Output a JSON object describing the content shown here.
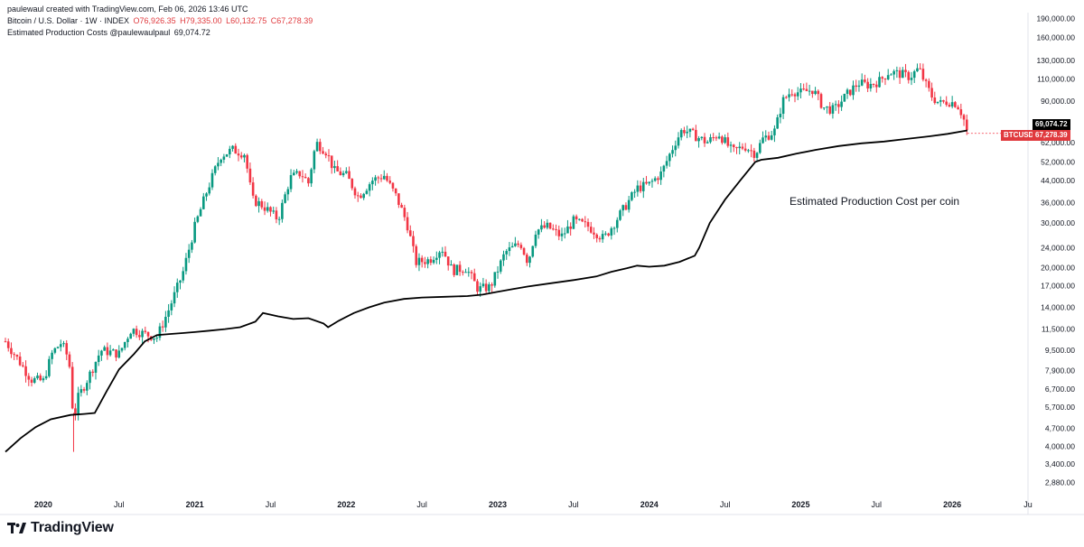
{
  "header": {
    "attribution": "paulewaul created with TradingView.com, Feb 06, 2026 13:46 UTC",
    "symbol": "Bitcoin / U.S. Dollar · 1W · INDEX",
    "open": "O76,926.35",
    "high": "H79,335.00",
    "low": "L60,132.75",
    "close": "C67,278.39",
    "indicator": "Estimated Production Costs @paulewaulpaul",
    "indicator_value": "69,074.72"
  },
  "annotation": "Estimated Production Cost per coin",
  "footer": {
    "brand": "TradingView"
  },
  "price_labels": {
    "production": "69,074.72",
    "btc_symbol": "BTCUSD",
    "btc_price": "67,278.39"
  },
  "colors": {
    "up": "#089981",
    "down": "#f23645",
    "line": "#000000",
    "label_red": "#e03a3e"
  },
  "chart_data": {
    "type": "line",
    "title": "Bitcoin / U.S. Dollar · 1W · INDEX",
    "yscale": "log",
    "ylim": [
      2500,
      200000
    ],
    "xlim": [
      2019.75,
      2026.5
    ],
    "y_ticks": [
      2880,
      3400,
      4000,
      4700,
      5700,
      6700,
      7900,
      9500,
      11500,
      14000,
      17000,
      20000,
      24000,
      30000,
      36000,
      44000,
      52000,
      62000,
      90000,
      110000,
      130000,
      160000,
      190000
    ],
    "y_tick_labels": [
      "2,880.00",
      "3,400.00",
      "4,000.00",
      "4,700.00",
      "5,700.00",
      "6,700.00",
      "7,900.00",
      "9,500.00",
      "11,500.00",
      "14,000.00",
      "17,000.00",
      "20,000.00",
      "24,000.00",
      "30,000.00",
      "36,000.00",
      "44,000.00",
      "52,000.00",
      "62,000.00",
      "90,000.00",
      "110,000.00",
      "130,000.00",
      "160,000.00",
      "190,000.00"
    ],
    "x_ticks": [
      {
        "t": 2020.0,
        "label": "2020",
        "bold": true
      },
      {
        "t": 2020.5,
        "label": "Jul",
        "bold": false
      },
      {
        "t": 2021.0,
        "label": "2021",
        "bold": true
      },
      {
        "t": 2021.5,
        "label": "Jul",
        "bold": false
      },
      {
        "t": 2022.0,
        "label": "2022",
        "bold": true
      },
      {
        "t": 2022.5,
        "label": "Jul",
        "bold": false
      },
      {
        "t": 2023.0,
        "label": "2023",
        "bold": true
      },
      {
        "t": 2023.5,
        "label": "Jul",
        "bold": false
      },
      {
        "t": 2024.0,
        "label": "2024",
        "bold": true
      },
      {
        "t": 2024.5,
        "label": "Jul",
        "bold": false
      },
      {
        "t": 2025.0,
        "label": "2025",
        "bold": true
      },
      {
        "t": 2025.5,
        "label": "Jul",
        "bold": false
      },
      {
        "t": 2026.0,
        "label": "2026",
        "bold": true
      },
      {
        "t": 2026.5,
        "label": "Ju",
        "bold": false
      }
    ],
    "series": [
      {
        "name": "BTCUSD (weekly close)",
        "kind": "candles",
        "points": [
          [
            2019.75,
            10300
          ],
          [
            2019.83,
            8800
          ],
          [
            2019.92,
            7300
          ],
          [
            2020.0,
            7200
          ],
          [
            2020.06,
            9300
          ],
          [
            2020.12,
            10200
          ],
          [
            2020.17,
            8700
          ],
          [
            2020.2,
            5000
          ],
          [
            2020.23,
            6200
          ],
          [
            2020.3,
            7500
          ],
          [
            2020.38,
            9500
          ],
          [
            2020.5,
            9200
          ],
          [
            2020.58,
            11500
          ],
          [
            2020.67,
            11000
          ],
          [
            2020.75,
            10700
          ],
          [
            2020.83,
            13800
          ],
          [
            2020.92,
            19000
          ],
          [
            2021.0,
            29000
          ],
          [
            2021.08,
            40000
          ],
          [
            2021.17,
            55000
          ],
          [
            2021.25,
            58000
          ],
          [
            2021.33,
            56000
          ],
          [
            2021.38,
            37000
          ],
          [
            2021.45,
            35000
          ],
          [
            2021.55,
            31000
          ],
          [
            2021.63,
            45000
          ],
          [
            2021.7,
            47000
          ],
          [
            2021.75,
            43000
          ],
          [
            2021.8,
            62000
          ],
          [
            2021.87,
            57000
          ],
          [
            2021.92,
            48000
          ],
          [
            2022.0,
            46000
          ],
          [
            2022.08,
            38000
          ],
          [
            2022.17,
            44000
          ],
          [
            2022.25,
            46000
          ],
          [
            2022.33,
            38000
          ],
          [
            2022.4,
            30000
          ],
          [
            2022.46,
            21000
          ],
          [
            2022.55,
            21500
          ],
          [
            2022.63,
            24000
          ],
          [
            2022.7,
            19500
          ],
          [
            2022.79,
            20000
          ],
          [
            2022.87,
            16500
          ],
          [
            2022.95,
            16800
          ],
          [
            2023.05,
            23000
          ],
          [
            2023.15,
            25000
          ],
          [
            2023.2,
            21000
          ],
          [
            2023.25,
            28000
          ],
          [
            2023.33,
            29000
          ],
          [
            2023.42,
            26500
          ],
          [
            2023.5,
            30500
          ],
          [
            2023.6,
            29000
          ],
          [
            2023.7,
            26000
          ],
          [
            2023.83,
            34000
          ],
          [
            2023.92,
            41000
          ],
          [
            2024.0,
            42500
          ],
          [
            2024.08,
            47000
          ],
          [
            2024.17,
            62000
          ],
          [
            2024.22,
            70000
          ],
          [
            2024.3,
            66000
          ],
          [
            2024.38,
            62000
          ],
          [
            2024.46,
            67000
          ],
          [
            2024.55,
            57000
          ],
          [
            2024.63,
            60000
          ],
          [
            2024.7,
            56000
          ],
          [
            2024.75,
            64000
          ],
          [
            2024.83,
            69000
          ],
          [
            2024.88,
            90000
          ],
          [
            2024.94,
            99000
          ],
          [
            2025.0,
            97000
          ],
          [
            2025.08,
            100000
          ],
          [
            2025.15,
            85000
          ],
          [
            2025.22,
            83000
          ],
          [
            2025.3,
            95000
          ],
          [
            2025.38,
            106000
          ],
          [
            2025.45,
            104000
          ],
          [
            2025.52,
            108000
          ],
          [
            2025.58,
            117000
          ],
          [
            2025.66,
            115000
          ],
          [
            2025.72,
            112000
          ],
          [
            2025.78,
            121000
          ],
          [
            2025.82,
            106000
          ],
          [
            2025.87,
            93000
          ],
          [
            2025.92,
            88000
          ],
          [
            2025.97,
            90000
          ],
          [
            2026.03,
            88000
          ],
          [
            2026.07,
            79000
          ],
          [
            2026.1,
            67278
          ]
        ]
      },
      {
        "name": "Estimated Production Costs",
        "kind": "line",
        "points": [
          [
            2019.75,
            3800
          ],
          [
            2019.85,
            4300
          ],
          [
            2019.95,
            4750
          ],
          [
            2020.05,
            5100
          ],
          [
            2020.18,
            5300
          ],
          [
            2020.27,
            5350
          ],
          [
            2020.34,
            5400
          ],
          [
            2020.42,
            6600
          ],
          [
            2020.5,
            8000
          ],
          [
            2020.6,
            9200
          ],
          [
            2020.67,
            10300
          ],
          [
            2020.75,
            10900
          ],
          [
            2020.83,
            11000
          ],
          [
            2020.92,
            11100
          ],
          [
            2021.0,
            11200
          ],
          [
            2021.1,
            11350
          ],
          [
            2021.2,
            11500
          ],
          [
            2021.3,
            11700
          ],
          [
            2021.4,
            12300
          ],
          [
            2021.45,
            13300
          ],
          [
            2021.55,
            12900
          ],
          [
            2021.65,
            12600
          ],
          [
            2021.75,
            12700
          ],
          [
            2021.85,
            12100
          ],
          [
            2021.88,
            11700
          ],
          [
            2021.95,
            12400
          ],
          [
            2022.05,
            13300
          ],
          [
            2022.15,
            14000
          ],
          [
            2022.25,
            14600
          ],
          [
            2022.38,
            15100
          ],
          [
            2022.5,
            15300
          ],
          [
            2022.65,
            15400
          ],
          [
            2022.8,
            15500
          ],
          [
            2022.9,
            15700
          ],
          [
            2023.0,
            16100
          ],
          [
            2023.1,
            16500
          ],
          [
            2023.2,
            16900
          ],
          [
            2023.35,
            17400
          ],
          [
            2023.5,
            17900
          ],
          [
            2023.65,
            18500
          ],
          [
            2023.75,
            19300
          ],
          [
            2023.85,
            19900
          ],
          [
            2023.92,
            20400
          ],
          [
            2024.0,
            20200
          ],
          [
            2024.1,
            20400
          ],
          [
            2024.2,
            21100
          ],
          [
            2024.3,
            22300
          ],
          [
            2024.33,
            24000
          ],
          [
            2024.4,
            30000
          ],
          [
            2024.5,
            37000
          ],
          [
            2024.6,
            44000
          ],
          [
            2024.7,
            52000
          ],
          [
            2024.74,
            53000
          ],
          [
            2024.85,
            54000
          ],
          [
            2024.97,
            56000
          ],
          [
            2025.1,
            58000
          ],
          [
            2025.25,
            60000
          ],
          [
            2025.4,
            61500
          ],
          [
            2025.55,
            62500
          ],
          [
            2025.7,
            64000
          ],
          [
            2025.85,
            65500
          ],
          [
            2025.97,
            67000
          ],
          [
            2026.1,
            69074
          ]
        ]
      }
    ]
  }
}
